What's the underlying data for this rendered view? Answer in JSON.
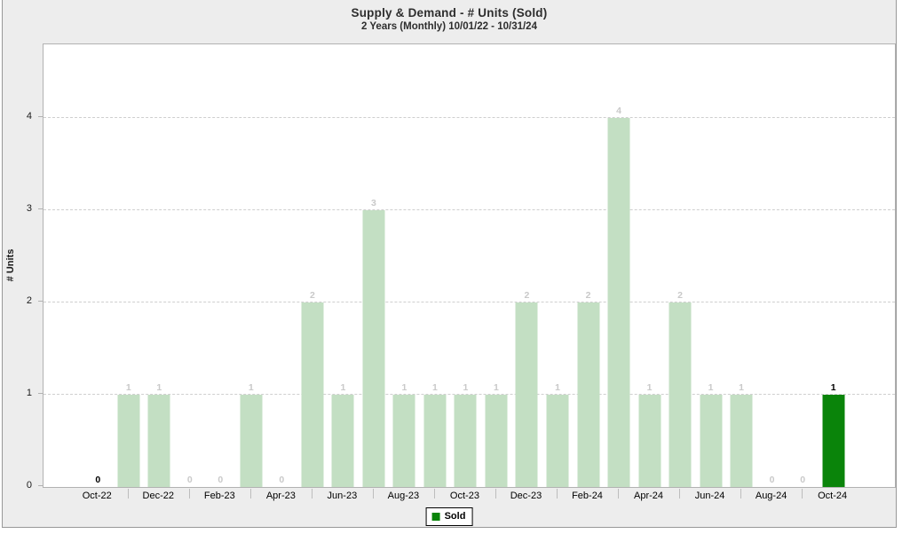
{
  "window": {
    "background": "#ededed",
    "frame_border": "#989898"
  },
  "header": {
    "title": "Supply & Demand - # Units (Sold)",
    "subtitle": "2 Years (Monthly) 10/01/22 - 10/31/24"
  },
  "legend": {
    "label": "Sold",
    "swatch_color": "#0a840a"
  },
  "chart_data": {
    "type": "bar",
    "title": "Supply & Demand - # Units (Sold)",
    "subtitle": "2 Years (Monthly) 10/01/22 - 10/31/24",
    "xlabel": "",
    "ylabel": "# Units",
    "ylim": [
      0,
      4.8
    ],
    "y_ticks": [
      0,
      1,
      2,
      3,
      4
    ],
    "grid": "horizontal-dashed",
    "legend_position": "bottom-center",
    "categories": [
      "Oct-22",
      "Nov-22",
      "Dec-22",
      "Jan-23",
      "Feb-23",
      "Mar-23",
      "Apr-23",
      "May-23",
      "Jun-23",
      "Jul-23",
      "Aug-23",
      "Sep-23",
      "Oct-23",
      "Nov-23",
      "Dec-23",
      "Jan-24",
      "Feb-24",
      "Mar-24",
      "Apr-24",
      "May-24",
      "Jun-24",
      "Jul-24",
      "Aug-24",
      "Sep-24",
      "Oct-24"
    ],
    "series": [
      {
        "name": "Sold",
        "values": [
          0,
          1,
          1,
          0,
          0,
          1,
          0,
          2,
          1,
          3,
          1,
          1,
          1,
          1,
          2,
          1,
          2,
          4,
          1,
          2,
          1,
          1,
          0,
          0,
          1
        ]
      }
    ],
    "x_axis_labeled_every": 2,
    "emphasized_indices": [
      0,
      24
    ],
    "colors": {
      "bar": "#c3dfc3",
      "bar_emphasis": "#0a840a",
      "value_label": "#c9c9c9",
      "value_label_emphasis": "#000000",
      "gridline": "#cfcfcf",
      "axis_text": "#000000"
    }
  }
}
